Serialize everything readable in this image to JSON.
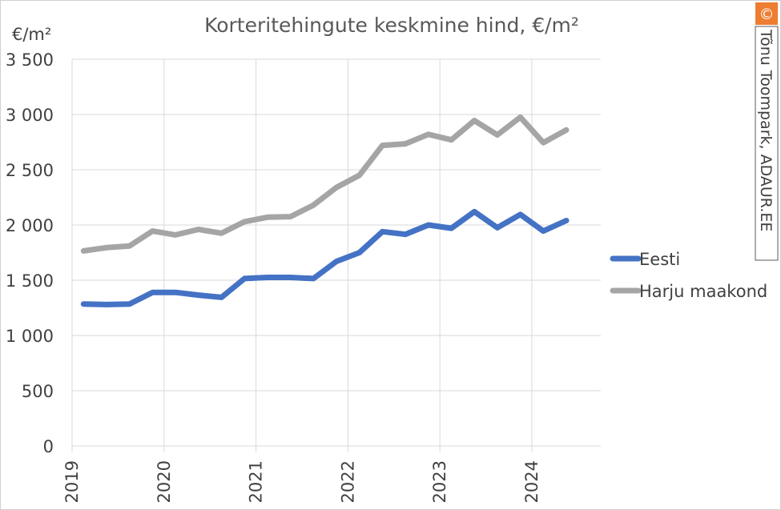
{
  "colors": {
    "eesti": "#4472c4",
    "harju": "#a5a5a5",
    "credit_bg": "#ed7d31"
  },
  "credit": {
    "symbol": "©",
    "text": "Tõnu Toompark, ADAUR.EE"
  },
  "chart_data": {
    "type": "line",
    "title": "Korteritehingute keskmine hind, €/m²",
    "ylabel": "€/m²",
    "xlabel": "",
    "ylim": [
      0,
      3500
    ],
    "yticks": [
      0,
      500,
      1000,
      1500,
      2000,
      2500,
      3000,
      3500
    ],
    "ytick_labels": [
      "0",
      "500",
      "1 000",
      "1 500",
      "2 000",
      "2 500",
      "3 000",
      "3 500"
    ],
    "xlim": [
      2019,
      2024.75
    ],
    "xticks": [
      2019,
      2020,
      2021,
      2022,
      2023,
      2024
    ],
    "xtick_labels": [
      "2019",
      "2020",
      "2021",
      "2022",
      "2023",
      "2024"
    ],
    "grid": true,
    "legend": "right",
    "x": [
      2019.125,
      2019.375,
      2019.625,
      2019.875,
      2020.125,
      2020.375,
      2020.625,
      2020.875,
      2021.125,
      2021.375,
      2021.625,
      2021.875,
      2022.125,
      2022.375,
      2022.625,
      2022.875,
      2023.125,
      2023.375,
      2023.625,
      2023.875,
      2024.125,
      2024.375
    ],
    "series": [
      {
        "name": "Eesti",
        "color": "#4472c4",
        "values": [
          1285,
          1280,
          1285,
          1390,
          1390,
          1365,
          1345,
          1515,
          1525,
          1525,
          1515,
          1670,
          1750,
          1940,
          1915,
          2000,
          1970,
          2120,
          1975,
          2095,
          1945,
          2040
        ]
      },
      {
        "name": "Harju maakond",
        "color": "#a5a5a5",
        "values": [
          1765,
          1795,
          1810,
          1945,
          1910,
          1960,
          1925,
          2030,
          2070,
          2075,
          2180,
          2340,
          2450,
          2720,
          2735,
          2820,
          2770,
          2945,
          2815,
          2975,
          2745,
          2860
        ]
      }
    ]
  }
}
